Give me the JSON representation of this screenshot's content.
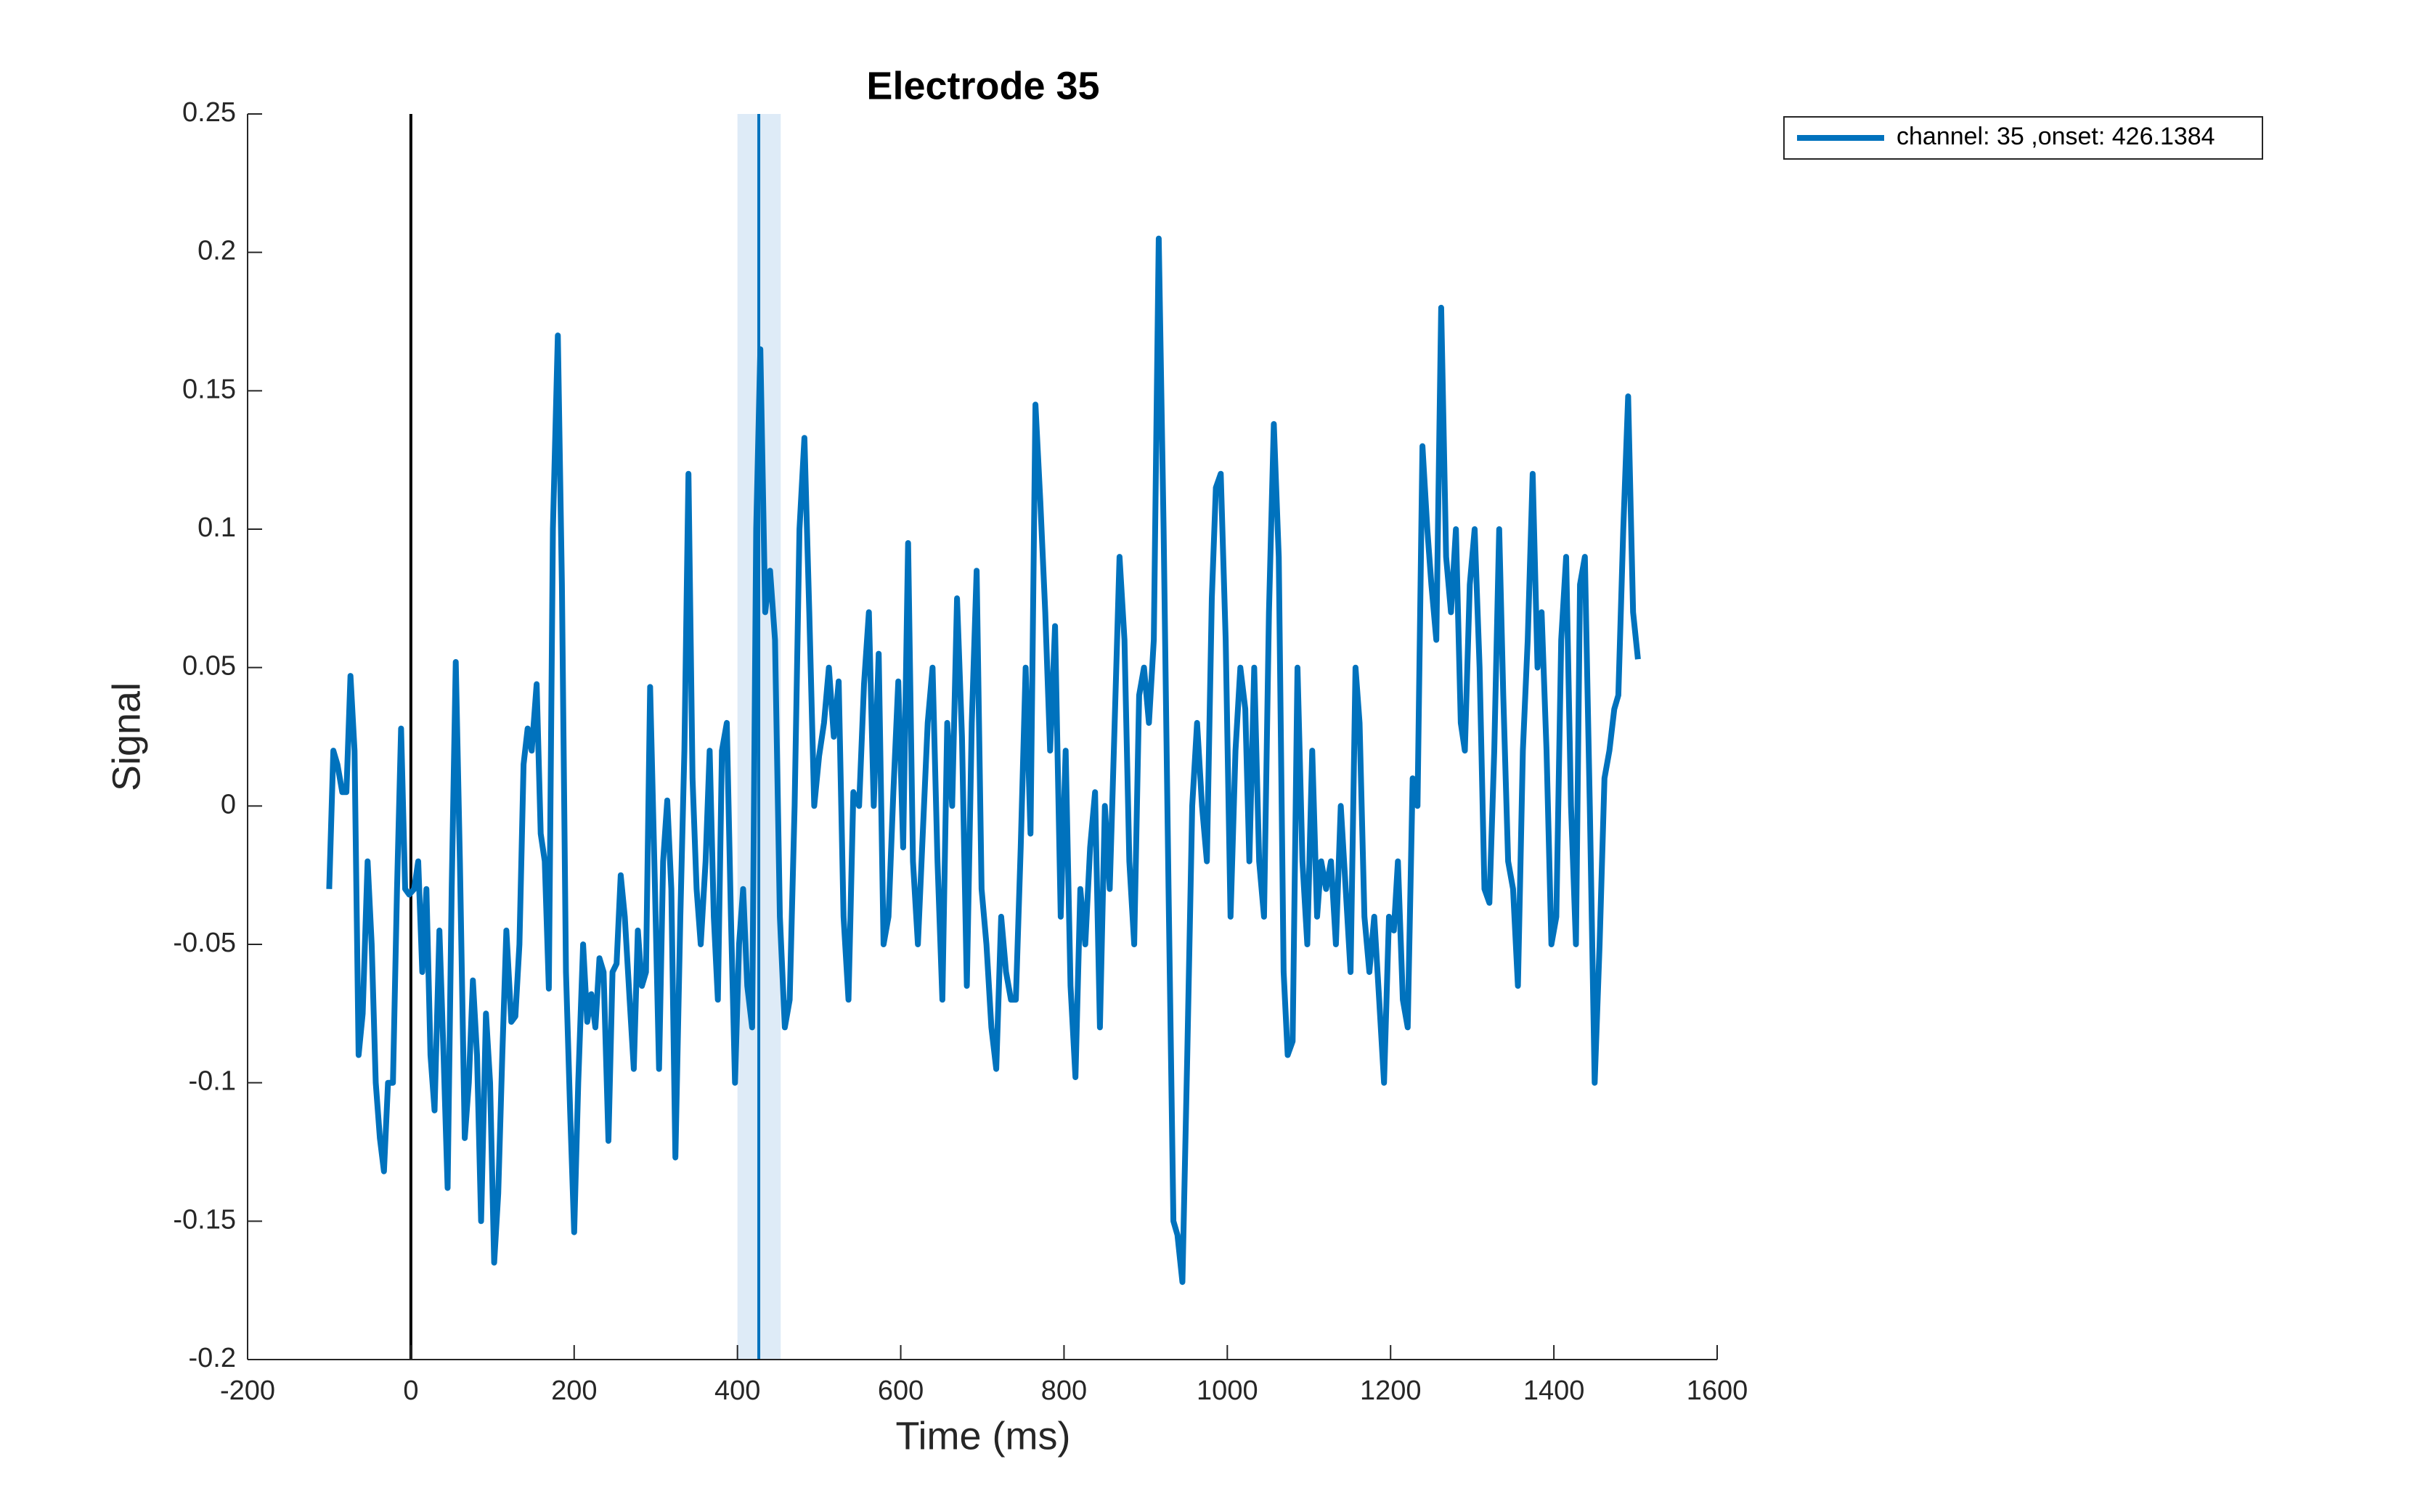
{
  "chart_data": {
    "type": "line",
    "title": "Electrode 35",
    "x_label": "Time (ms)",
    "y_label": "Signal",
    "x": [
      -100,
      -95,
      -90,
      -84,
      -79,
      -74,
      -69,
      -64,
      -59,
      -53,
      -48,
      -43,
      -38,
      -33,
      -28,
      -22,
      -17,
      -12,
      -7,
      -2,
      4,
      9,
      14,
      19,
      24,
      29,
      35,
      40,
      45,
      50,
      55,
      60,
      66,
      71,
      76,
      81,
      86,
      92,
      97,
      102,
      107,
      112,
      117,
      123,
      128,
      133,
      138,
      143,
      148,
      154,
      159,
      164,
      169,
      174,
      180,
      185,
      190,
      195,
      200,
      205,
      211,
      216,
      221,
      226,
      231,
      236,
      242,
      247,
      252,
      257,
      262,
      268,
      273,
      278,
      283,
      288,
      293,
      299,
      304,
      309,
      314,
      319,
      324,
      330,
      335,
      340,
      345,
      350,
      355,
      361,
      366,
      371,
      376,
      381,
      387,
      392,
      397,
      402,
      407,
      412,
      418,
      423,
      428,
      434,
      440,
      446,
      452,
      458,
      464,
      470,
      476,
      482,
      488,
      494,
      500,
      506,
      512,
      518,
      524,
      530,
      536,
      542,
      549,
      555,
      561,
      567,
      573,
      579,
      585,
      591,
      597,
      603,
      609,
      615,
      621,
      627,
      633,
      639,
      645,
      651,
      657,
      663,
      669,
      675,
      681,
      687,
      693,
      699,
      705,
      711,
      717,
      723,
      729,
      735,
      741,
      747,
      753,
      759,
      765,
      771,
      777,
      783,
      789,
      796,
      802,
      808,
      814,
      820,
      826,
      832,
      838,
      844,
      850,
      856,
      862,
      868,
      874,
      880,
      886,
      892,
      898,
      904,
      910,
      916,
      922,
      928,
      934,
      939,
      945,
      951,
      957,
      963,
      969,
      975,
      981,
      986,
      992,
      998,
      1004,
      1010,
      1016,
      1022,
      1027,
      1033,
      1039,
      1045,
      1051,
      1057,
      1063,
      1069,
      1074,
      1080,
      1086,
      1092,
      1098,
      1104,
      1110,
      1115,
      1121,
      1127,
      1133,
      1139,
      1145,
      1151,
      1157,
      1162,
      1168,
      1174,
      1180,
      1186,
      1192,
      1198,
      1204,
      1209,
      1215,
      1221,
      1227,
      1233,
      1239,
      1245,
      1250,
      1256,
      1262,
      1268,
      1274,
      1280,
      1286,
      1291,
      1297,
      1303,
      1309,
      1315,
      1321,
      1327,
      1333,
      1338,
      1344,
      1350,
      1356,
      1362,
      1368,
      1374,
      1380,
      1385,
      1391,
      1397,
      1403,
      1409,
      1415,
      1421,
      1427,
      1432,
      1438,
      1444,
      1450,
      1456,
      1462,
      1468,
      1474,
      1479,
      1485,
      1491,
      1497,
      1503
    ],
    "series": [
      {
        "name": "channel: 35 ,onset: 426.1384",
        "color": "#0072bd",
        "values": [
          -0.03,
          0.02,
          0.015,
          0.005,
          0.005,
          0.047,
          0.02,
          -0.09,
          -0.075,
          -0.02,
          -0.05,
          -0.1,
          -0.12,
          -0.132,
          -0.1,
          -0.1,
          -0.03,
          0.028,
          -0.03,
          -0.032,
          -0.03,
          -0.02,
          -0.06,
          -0.03,
          -0.09,
          -0.11,
          -0.045,
          -0.09,
          -0.138,
          -0.03,
          0.052,
          -0.02,
          -0.12,
          -0.1,
          -0.063,
          -0.09,
          -0.15,
          -0.075,
          -0.1,
          -0.165,
          -0.14,
          -0.09,
          -0.045,
          -0.078,
          -0.076,
          -0.05,
          0.015,
          0.028,
          0.02,
          0.044,
          -0.01,
          -0.02,
          -0.066,
          0.1,
          0.17,
          0.08,
          -0.06,
          -0.11,
          -0.154,
          -0.1,
          -0.05,
          -0.078,
          -0.068,
          -0.08,
          -0.055,
          -0.06,
          -0.121,
          -0.06,
          -0.057,
          -0.025,
          -0.04,
          -0.07,
          -0.095,
          -0.045,
          -0.065,
          -0.06,
          0.043,
          -0.03,
          -0.095,
          -0.02,
          0.002,
          -0.03,
          -0.127,
          -0.04,
          0.02,
          0.12,
          0.01,
          -0.03,
          -0.05,
          -0.02,
          0.02,
          -0.04,
          -0.07,
          0.02,
          0.03,
          -0.04,
          -0.1,
          -0.05,
          -0.03,
          -0.065,
          -0.08,
          0.1,
          0.165,
          0.07,
          0.085,
          0.06,
          -0.04,
          -0.08,
          -0.07,
          0.0,
          0.1,
          0.133,
          0.07,
          0.0,
          0.018,
          0.03,
          0.05,
          0.025,
          0.045,
          -0.04,
          -0.07,
          0.005,
          0.0,
          0.044,
          0.07,
          0.0,
          0.055,
          -0.05,
          -0.04,
          0.005,
          0.045,
          -0.015,
          0.095,
          -0.02,
          -0.05,
          -0.01,
          0.03,
          0.05,
          -0.02,
          -0.07,
          0.03,
          0.0,
          0.075,
          0.025,
          -0.065,
          0.03,
          0.085,
          -0.03,
          -0.05,
          -0.08,
          -0.095,
          -0.04,
          -0.06,
          -0.07,
          -0.07,
          -0.015,
          0.05,
          -0.01,
          0.145,
          0.11,
          0.07,
          0.02,
          0.065,
          -0.04,
          0.02,
          -0.065,
          -0.098,
          -0.03,
          -0.05,
          -0.015,
          0.005,
          -0.08,
          0.0,
          -0.03,
          0.03,
          0.09,
          0.06,
          -0.02,
          -0.05,
          0.04,
          0.05,
          0.03,
          0.06,
          0.205,
          0.1,
          -0.03,
          -0.15,
          -0.155,
          -0.172,
          -0.09,
          0.0,
          0.03,
          0.0,
          -0.02,
          0.075,
          0.115,
          0.12,
          0.06,
          -0.04,
          0.02,
          0.05,
          0.035,
          -0.02,
          0.05,
          -0.02,
          -0.04,
          0.07,
          0.138,
          0.09,
          -0.06,
          -0.09,
          -0.085,
          0.05,
          -0.02,
          -0.05,
          0.02,
          -0.04,
          -0.02,
          -0.03,
          -0.02,
          -0.05,
          0.0,
          -0.03,
          -0.06,
          0.05,
          0.03,
          -0.04,
          -0.06,
          -0.04,
          -0.07,
          -0.1,
          -0.04,
          -0.045,
          -0.02,
          -0.07,
          -0.08,
          0.01,
          0.0,
          0.13,
          0.1,
          0.08,
          0.06,
          0.18,
          0.09,
          0.07,
          0.1,
          0.03,
          0.02,
          0.08,
          0.1,
          0.05,
          -0.03,
          -0.035,
          0.02,
          0.1,
          0.04,
          -0.02,
          -0.03,
          -0.065,
          0.02,
          0.06,
          0.12,
          0.05,
          0.07,
          0.02,
          -0.05,
          -0.04,
          0.06,
          0.09,
          0.0,
          -0.05,
          0.08,
          0.09,
          0.0,
          -0.1,
          -0.05,
          0.01,
          0.02,
          0.035,
          0.04,
          0.1,
          0.148,
          0.07,
          0.053
        ]
      }
    ],
    "vlines": [
      {
        "x": 0,
        "color": "#000000"
      },
      {
        "x": 426.1384,
        "color": "#0072bd"
      }
    ],
    "shaded": {
      "x": [
        400,
        453
      ],
      "color": "#deebf7"
    },
    "xlim": [
      -200,
      1600
    ],
    "xticks": [
      -200,
      0,
      200,
      400,
      600,
      800,
      1000,
      1200,
      1400,
      1600
    ],
    "ylim": [
      -0.2,
      0.25
    ],
    "yticks": [
      -0.2,
      -0.15,
      -0.1,
      -0.05,
      0,
      0.05,
      0.1,
      0.15,
      0.2,
      0.25
    ],
    "grid": false,
    "legend": "northeastoutside"
  }
}
